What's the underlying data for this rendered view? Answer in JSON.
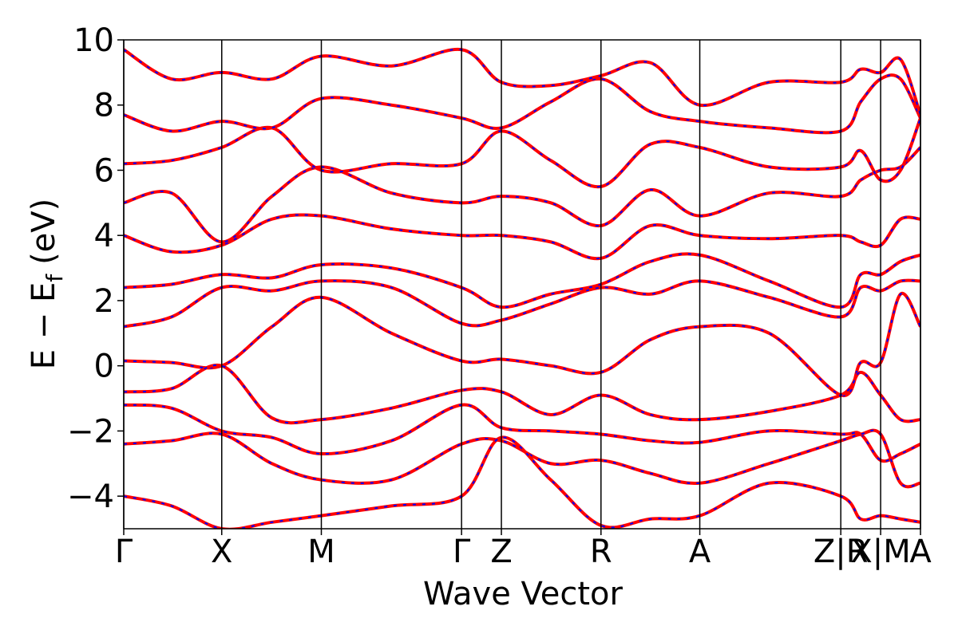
{
  "chart_data": {
    "type": "line",
    "xlabel": "Wave Vector",
    "ylabel": {
      "main": "E − E",
      "sub": "f",
      "unit": "(eV)"
    },
    "xlim": [
      0,
      1
    ],
    "ylim": [
      -5,
      10
    ],
    "yticks": [
      {
        "value": -4,
        "label": "−4"
      },
      {
        "value": -2,
        "label": "−2"
      },
      0,
      2,
      4,
      6,
      8,
      10
    ],
    "xticks": [
      {
        "value": 0,
        "label": "Γ"
      },
      {
        "value": 0.123,
        "label": "X"
      },
      {
        "value": 0.248,
        "label": "M"
      },
      {
        "value": 0.424,
        "label": "Γ"
      },
      {
        "value": 0.474,
        "label": "Z"
      },
      {
        "value": 0.599,
        "label": "R"
      },
      {
        "value": 0.723,
        "label": "A"
      },
      {
        "value": 0.9,
        "label": "Z|R"
      },
      {
        "value": 0.95,
        "label": "X|M"
      },
      {
        "value": 1,
        "label": "A"
      }
    ],
    "xgrid": true,
    "line_color": "#ff0000",
    "dash_color": "#0000ff",
    "x": [
      0,
      0.06,
      0.123,
      0.186,
      0.248,
      0.336,
      0.424,
      0.474,
      0.536,
      0.599,
      0.661,
      0.723,
      0.81,
      0.9,
      0.925,
      0.95,
      0.975,
      1
    ],
    "series": [
      {
        "values": [
          0.15,
          0.1,
          0.0,
          1.2,
          2.1,
          1.0,
          0.15,
          0.2,
          0.0,
          -0.2,
          0.8,
          1.2,
          1.0,
          -0.9,
          0.1,
          0.1,
          2.2,
          1.2
        ]
      },
      {
        "values": [
          -0.8,
          -0.7,
          0.0,
          -1.6,
          -1.65,
          -1.3,
          -0.75,
          -0.8,
          -1.5,
          -0.9,
          -1.5,
          -1.65,
          -1.4,
          -0.9,
          -0.2,
          -0.9,
          -1.65,
          -1.65
        ]
      },
      {
        "values": [
          -1.2,
          -1.3,
          -2.0,
          -2.2,
          -2.7,
          -2.3,
          -1.2,
          -1.9,
          -2.0,
          -2.1,
          -2.3,
          -2.35,
          -2.0,
          -2.1,
          -2.1,
          -2.9,
          -2.7,
          -2.4
        ]
      },
      {
        "values": [
          -2.4,
          -2.3,
          -2.1,
          -3.0,
          -3.5,
          -3.5,
          -2.4,
          -2.3,
          -3.0,
          -2.9,
          -3.3,
          -3.6,
          -3.0,
          -2.3,
          -2.1,
          -2.1,
          -3.6,
          -3.6
        ]
      },
      {
        "values": [
          -4.0,
          -4.3,
          -5.0,
          -4.8,
          -4.6,
          -4.3,
          -4.0,
          -2.2,
          -3.5,
          -4.9,
          -4.7,
          -4.6,
          -3.6,
          -4.0,
          -4.7,
          -4.6,
          -4.7,
          -4.8
        ]
      },
      {
        "values": [
          1.2,
          1.5,
          2.4,
          2.3,
          2.6,
          2.4,
          1.3,
          1.4,
          1.9,
          2.4,
          2.2,
          2.6,
          2.1,
          1.5,
          2.4,
          2.3,
          2.6,
          2.6
        ]
      },
      {
        "values": [
          2.4,
          2.5,
          2.8,
          2.7,
          3.1,
          3.0,
          2.4,
          1.8,
          2.2,
          2.5,
          3.2,
          3.4,
          2.6,
          1.8,
          2.8,
          2.8,
          3.2,
          3.4
        ]
      },
      {
        "values": [
          4.0,
          3.5,
          3.7,
          4.5,
          4.6,
          4.2,
          4.0,
          4.0,
          3.8,
          3.3,
          4.3,
          4.0,
          3.9,
          4.0,
          3.8,
          3.7,
          4.5,
          4.5
        ]
      },
      {
        "values": [
          5.0,
          5.3,
          3.8,
          5.2,
          6.1,
          5.3,
          5.0,
          5.2,
          5.0,
          4.3,
          5.4,
          4.6,
          5.3,
          5.2,
          5.7,
          6.0,
          6.1,
          6.7
        ]
      },
      {
        "values": [
          6.2,
          6.3,
          6.7,
          7.3,
          6.0,
          6.2,
          6.2,
          7.2,
          6.3,
          5.5,
          6.8,
          6.7,
          6.1,
          6.1,
          6.6,
          5.7,
          6.0,
          7.6
        ]
      },
      {
        "values": [
          7.7,
          7.2,
          7.5,
          7.3,
          8.2,
          8.0,
          7.6,
          7.3,
          8.1,
          8.8,
          7.8,
          7.5,
          7.3,
          7.2,
          8.1,
          8.8,
          8.8,
          7.6
        ]
      },
      {
        "values": [
          9.7,
          8.8,
          9.0,
          8.8,
          9.5,
          9.2,
          9.7,
          8.7,
          8.6,
          8.9,
          9.3,
          8.0,
          8.7,
          8.7,
          9.1,
          9.0,
          9.4,
          7.7
        ]
      }
    ]
  }
}
